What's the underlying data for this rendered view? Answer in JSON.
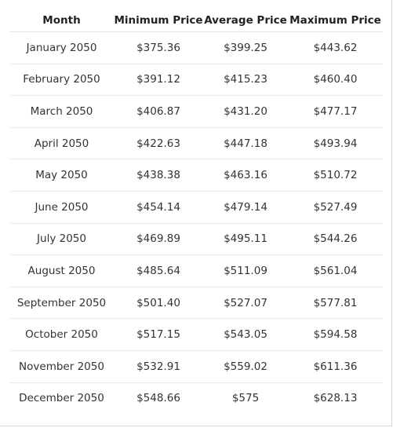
{
  "chart_data": {
    "type": "table",
    "columns": [
      "Month",
      "Minimum Price",
      "Average Price",
      "Maximum Price"
    ],
    "rows": [
      [
        "January 2050",
        "$375.36",
        "$399.25",
        "$443.62"
      ],
      [
        "February 2050",
        "$391.12",
        "$415.23",
        "$460.40"
      ],
      [
        "March 2050",
        "$406.87",
        "$431.20",
        "$477.17"
      ],
      [
        "April 2050",
        "$422.63",
        "$447.18",
        "$493.94"
      ],
      [
        "May 2050",
        "$438.38",
        "$463.16",
        "$510.72"
      ],
      [
        "June 2050",
        "$454.14",
        "$479.14",
        "$527.49"
      ],
      [
        "July 2050",
        "$469.89",
        "$495.11",
        "$544.26"
      ],
      [
        "August 2050",
        "$485.64",
        "$511.09",
        "$561.04"
      ],
      [
        "September 2050",
        "$501.40",
        "$527.07",
        "$577.81"
      ],
      [
        "October 2050",
        "$517.15",
        "$543.05",
        "$594.58"
      ],
      [
        "November 2050",
        "$532.91",
        "$559.02",
        "$611.36"
      ],
      [
        "December 2050",
        "$548.66",
        "$575",
        "$628.13"
      ]
    ]
  }
}
